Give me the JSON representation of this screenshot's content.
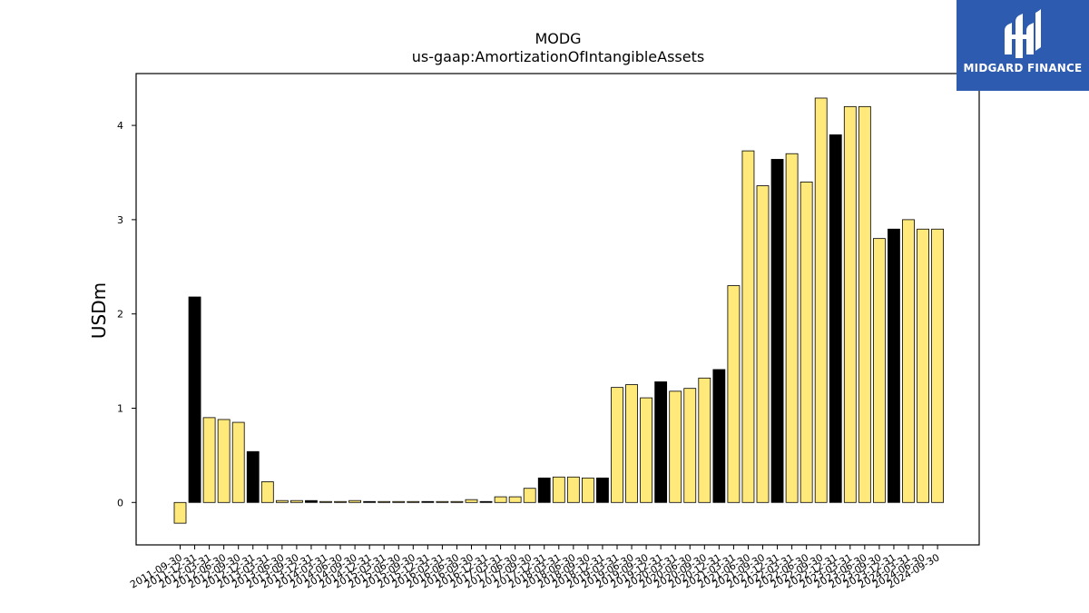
{
  "chart_data": {
    "type": "bar",
    "title": "MODG",
    "subtitle": "us-gaap:AmortizationOfIntangibleAssets",
    "xlabel": "",
    "ylabel": "USDm",
    "ylim": [
      -0.45,
      4.55
    ],
    "yticks": [
      0,
      1,
      2,
      3,
      4
    ],
    "grid": false,
    "categories": [
      "2011-09-30",
      "2011-12-31",
      "2012-03-31",
      "2012-06-30",
      "2012-09-30",
      "2012-12-31",
      "2013-03-31",
      "2013-06-30",
      "2013-09-30",
      "2013-12-31",
      "2014-03-31",
      "2014-06-30",
      "2014-09-30",
      "2014-12-31",
      "2015-03-31",
      "2015-06-30",
      "2015-09-30",
      "2015-12-31",
      "2016-03-31",
      "2016-06-30",
      "2016-09-30",
      "2016-12-31",
      "2017-03-31",
      "2017-06-30",
      "2017-09-30",
      "2017-12-31",
      "2018-03-31",
      "2018-06-30",
      "2018-09-30",
      "2018-12-31",
      "2019-03-31",
      "2019-06-30",
      "2019-09-30",
      "2019-12-31",
      "2020-03-31",
      "2020-06-30",
      "2020-09-30",
      "2020-12-31",
      "2021-03-31",
      "2021-06-30",
      "2021-09-30",
      "2021-12-31",
      "2022-03-31",
      "2022-06-30",
      "2022-09-30",
      "2022-12-31",
      "2023-03-31",
      "2023-06-30",
      "2023-09-30",
      "2023-12-31",
      "2024-03-31",
      "2024-06-30",
      "2024-09-30"
    ],
    "values": [
      -0.22,
      2.18,
      0.9,
      0.88,
      0.85,
      0.54,
      0.22,
      0.02,
      0.02,
      0.02,
      0.01,
      0.01,
      0.02,
      0.01,
      0.01,
      0.01,
      0.01,
      0.01,
      0.01,
      0.01,
      0.03,
      0.01,
      0.06,
      0.06,
      0.15,
      0.26,
      0.27,
      0.27,
      0.26,
      0.26,
      1.22,
      1.25,
      1.11,
      1.28,
      1.18,
      1.21,
      1.32,
      1.41,
      2.3,
      3.73,
      3.36,
      3.64,
      3.7,
      3.4,
      4.29,
      3.9,
      4.2,
      4.2,
      2.8,
      2.9,
      3.0,
      2.9,
      2.9
    ],
    "highlight_indices": [
      1,
      5,
      9,
      13,
      17,
      21,
      25,
      29,
      33,
      37,
      41,
      45,
      49
    ],
    "colors": {
      "default": "#ffe97a",
      "highlight": "#000000",
      "edge": "#000000"
    }
  },
  "logo": {
    "text": "MIDGARD FINANCE",
    "background": "#2d5bb0",
    "icon": "midgard-logo-icon"
  }
}
